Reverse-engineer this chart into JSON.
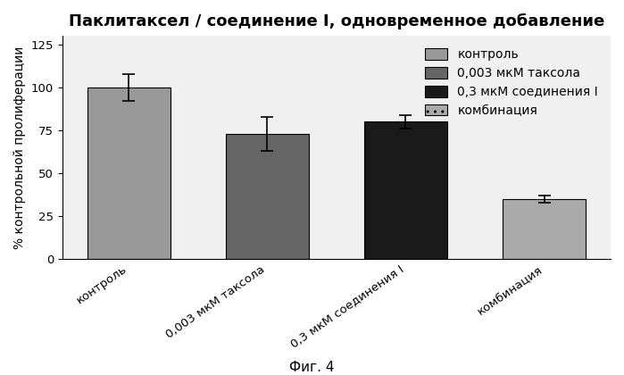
{
  "title": "Паклитаксел / соединение I, одновременное добавление",
  "ylabel": "% контрольной пролиферации",
  "xlabel_fig": "Фиг. 4",
  "categories": [
    "контроль",
    "0,003 мкМ таксола",
    "0,3 мкМ соединения I",
    "комбинация"
  ],
  "values": [
    100,
    73,
    80,
    35
  ],
  "errors": [
    8,
    10,
    4,
    2
  ],
  "bar_colors": [
    "#999999",
    "#666666",
    "#1a1a1a",
    "#aaaaaa"
  ],
  "legend_labels": [
    "контроль",
    "0,003 мкМ таксола",
    "0,3 мкМ соединения I",
    "комбинация"
  ],
  "legend_colors": [
    "#999999",
    "#666666",
    "#1a1a1a",
    "#aaaaaa"
  ],
  "legend_hatches": [
    "",
    "",
    "",
    ".."
  ],
  "ylim": [
    0,
    130
  ],
  "yticks": [
    0,
    25,
    50,
    75,
    100,
    125
  ],
  "background_color": "#f0f0f0",
  "bar_width": 0.6,
  "title_fontsize": 13,
  "axis_fontsize": 10,
  "tick_fontsize": 9.5,
  "legend_fontsize": 10
}
